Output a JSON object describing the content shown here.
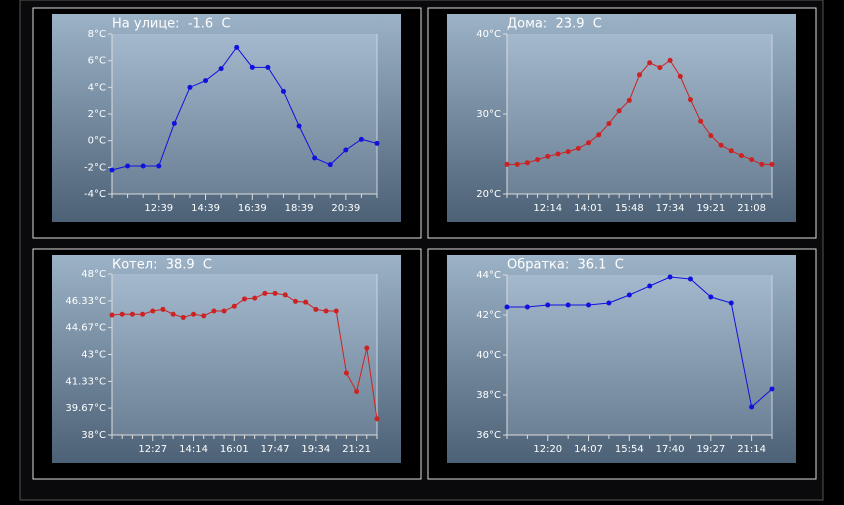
{
  "chart_data": [
    {
      "type": "line",
      "title": "На улице:  -1.6  C",
      "color": "#1010e0",
      "categories": [
        null,
        null,
        null,
        "12:39",
        null,
        null,
        "14:39",
        null,
        null,
        "16:39",
        null,
        null,
        "18:39",
        null,
        null,
        "20:39",
        null,
        null
      ],
      "values": [
        -2.2,
        -1.9,
        -1.9,
        -1.9,
        1.3,
        4.0,
        4.5,
        5.4,
        7.0,
        5.5,
        5.5,
        3.7,
        1.1,
        -1.3,
        -1.8,
        -0.7,
        0.1,
        -0.2
      ],
      "ylim": [
        -4,
        8
      ],
      "yticks": [
        {
          "value": -4,
          "label": "-4°C"
        },
        {
          "value": -2,
          "label": "-2°C"
        },
        {
          "value": 0,
          "label": "0°C"
        },
        {
          "value": 2,
          "label": "2°C"
        },
        {
          "value": 4,
          "label": "4°C"
        },
        {
          "value": 6,
          "label": "6°C"
        },
        {
          "value": 8,
          "label": "8°C"
        }
      ]
    },
    {
      "type": "line",
      "title": "Дома:  23.9  C",
      "color": "#cc2222",
      "categories": [
        null,
        null,
        null,
        null,
        "12:14",
        null,
        null,
        null,
        "14:01",
        null,
        null,
        null,
        "15:48",
        null,
        null,
        null,
        "17:34",
        null,
        null,
        null,
        "19:21",
        null,
        null,
        null,
        "21:08",
        null,
        null
      ],
      "values": [
        23.7,
        23.7,
        23.9,
        24.3,
        24.7,
        25.0,
        25.3,
        25.7,
        26.4,
        27.4,
        28.8,
        30.4,
        31.7,
        34.9,
        36.4,
        35.8,
        36.7,
        34.7,
        31.8,
        29.1,
        27.3,
        26.1,
        25.4,
        24.8,
        24.3,
        23.7,
        23.7
      ],
      "ylim": [
        20,
        40
      ],
      "yticks": [
        {
          "value": 20,
          "label": "20°C"
        },
        {
          "value": 30,
          "label": "30°C"
        },
        {
          "value": 40,
          "label": "40°C"
        }
      ]
    },
    {
      "type": "line",
      "title": "Котел:  38.9  C",
      "color": "#cc2222",
      "categories": [
        null,
        null,
        null,
        null,
        "12:27",
        null,
        null,
        null,
        "14:14",
        null,
        null,
        null,
        "16:01",
        null,
        null,
        null,
        "17:47",
        null,
        null,
        null,
        "19:34",
        null,
        null,
        null,
        "21:21",
        null,
        null
      ],
      "values": [
        45.45,
        45.5,
        45.5,
        45.5,
        45.7,
        45.8,
        45.5,
        45.3,
        45.5,
        45.4,
        45.7,
        45.7,
        46.0,
        46.45,
        46.5,
        46.8,
        46.8,
        46.7,
        46.3,
        46.25,
        45.8,
        45.7,
        45.7,
        41.85,
        40.7,
        43.4,
        39.0
      ],
      "ylim": [
        38,
        48
      ],
      "yticks": [
        {
          "value": 38,
          "label": "38°C"
        },
        {
          "value": 39.67,
          "label": "39.67°C"
        },
        {
          "value": 41.33,
          "label": "41.33°C"
        },
        {
          "value": 43,
          "label": "43°C"
        },
        {
          "value": 44.67,
          "label": "44.67°C"
        },
        {
          "value": 46.33,
          "label": "46.33°C"
        },
        {
          "value": 48,
          "label": "48°C"
        }
      ]
    },
    {
      "type": "line",
      "title": "Обратка:  36.1  C",
      "color": "#1010e0",
      "categories": [
        null,
        null,
        "12:20",
        null,
        "14:07",
        null,
        "15:54",
        null,
        "17:40",
        null,
        "19:27",
        null,
        "21:14",
        null
      ],
      "values": [
        42.4,
        42.4,
        42.5,
        42.5,
        42.5,
        42.6,
        43.0,
        43.45,
        43.9,
        43.8,
        42.9,
        42.6,
        37.4,
        38.3
      ],
      "ylim": [
        36,
        44
      ],
      "yticks": [
        {
          "value": 36,
          "label": "36°C"
        },
        {
          "value": 38,
          "label": "38°C"
        },
        {
          "value": 40,
          "label": "40°C"
        },
        {
          "value": 42,
          "label": "42°C"
        },
        {
          "value": 44,
          "label": "44°C"
        }
      ]
    }
  ]
}
